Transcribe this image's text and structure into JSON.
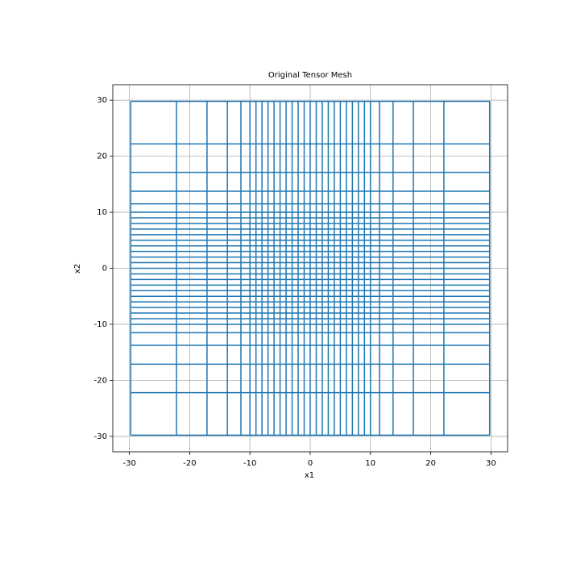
{
  "chart_data": {
    "type": "mesh",
    "title": "Original Tensor Mesh",
    "x_label": "x1",
    "y_label": "x2",
    "x_nodes": [
      -29.78125,
      -22.1875,
      -17.125,
      -13.75,
      -11.5,
      -10,
      -9,
      -8,
      -7,
      -6,
      -5,
      -4,
      -3,
      -2,
      -1,
      0,
      1,
      2,
      3,
      4,
      5,
      6,
      7,
      8,
      9,
      10,
      11.5,
      13.75,
      17.125,
      22.1875,
      29.78125
    ],
    "y_nodes": [
      -29.78125,
      -22.1875,
      -17.125,
      -13.75,
      -11.5,
      -10,
      -9,
      -8,
      -7,
      -6,
      -5,
      -4,
      -3,
      -2,
      -1,
      0,
      1,
      2,
      3,
      4,
      5,
      6,
      7,
      8,
      9,
      10,
      11.5,
      13.75,
      17.125,
      22.1875,
      29.78125
    ],
    "color": "#1f77b4",
    "xlim": [
      -32.76,
      32.76
    ],
    "ylim": [
      -32.76,
      32.76
    ],
    "xticks": [
      -30,
      -20,
      -10,
      0,
      10,
      20,
      30
    ],
    "yticks": [
      -30,
      -20,
      -10,
      0,
      10,
      20,
      30
    ],
    "grid": true
  }
}
